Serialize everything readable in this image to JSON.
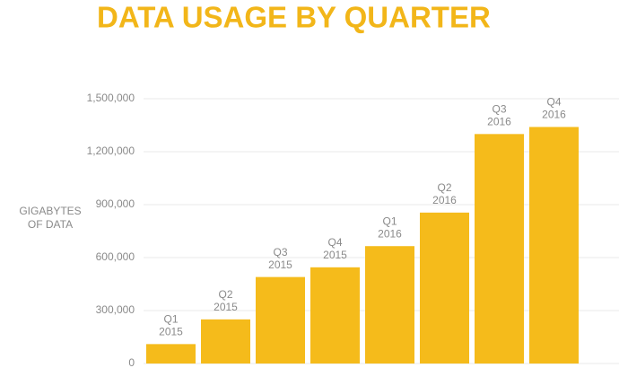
{
  "chart_data": {
    "type": "bar",
    "title": "DATA USAGE BY QUARTER",
    "y_label": [
      "GIGABYTES",
      "OF DATA"
    ],
    "categories": [
      [
        "Q1",
        "2015"
      ],
      [
        "Q2",
        "2015"
      ],
      [
        "Q3",
        "2015"
      ],
      [
        "Q4",
        "2015"
      ],
      [
        "Q1",
        "2016"
      ],
      [
        "Q2",
        "2016"
      ],
      [
        "Q3",
        "2016"
      ],
      [
        "Q4",
        "2016"
      ]
    ],
    "values": [
      110000,
      250000,
      490000,
      545000,
      665000,
      855000,
      1300000,
      1340000
    ],
    "color": "#f5bb1b",
    "ylim": [
      0,
      1500000
    ],
    "yticks": [
      0,
      {
        "value": 300000,
        "label": "300,000"
      },
      {
        "value": 600000,
        "label": "600,000"
      },
      {
        "value": 900000,
        "label": "900,000"
      },
      {
        "value": 1200000,
        "label": "1,200,000"
      },
      {
        "value": 1500000,
        "label": "1,500,000"
      }
    ],
    "grid": true
  }
}
